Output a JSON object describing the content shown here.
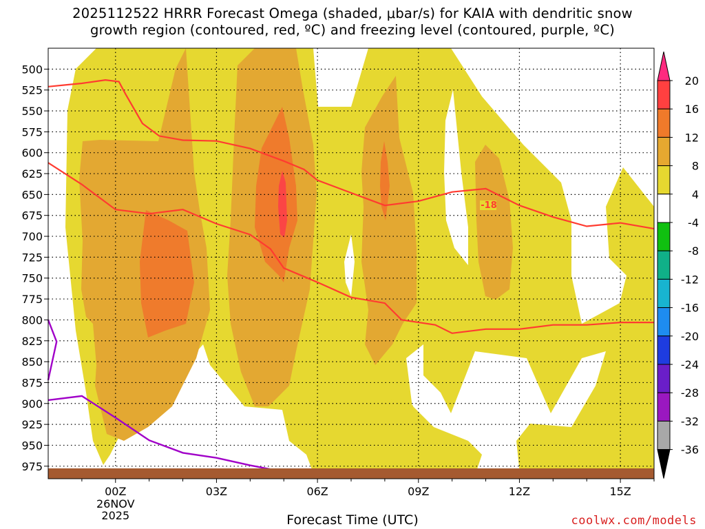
{
  "title": {
    "line1": "2025112522 HRRR Forecast Omega (shaded, μbar/s) for KAIA with dendritic snow",
    "line2": "growth region (contoured, red, ºC) and freezing level (contoured, purple, ºC)"
  },
  "chart_data": {
    "type": "heatmap",
    "xlabel": "Forecast Time (UTC)",
    "x_ticks": [
      "00Z",
      "03Z",
      "06Z",
      "09Z",
      "12Z",
      "15Z"
    ],
    "x_sub_labels": [
      "26NOV",
      "2025"
    ],
    "xlim_hours": [
      -2,
      16
    ],
    "ylabel": "",
    "y_ticks": [
      500,
      525,
      550,
      575,
      600,
      625,
      650,
      675,
      700,
      725,
      750,
      775,
      800,
      825,
      850,
      875,
      900,
      925,
      950,
      975
    ],
    "ylim_hPa": [
      990,
      475
    ],
    "grid": true,
    "colorbar": {
      "labels": [
        "20",
        "16",
        "12",
        "8",
        "4",
        "-4",
        "-8",
        "-12",
        "-16",
        "-20",
        "-24",
        "-28",
        "-32",
        "-36"
      ],
      "colors": [
        "#ff2a7f",
        "#ff4040",
        "#f07a2a",
        "#e6a830",
        "#e6d830",
        "#ffffff",
        "#10c010",
        "#10b088",
        "#18b4d0",
        "#1e8cf0",
        "#1e3ce0",
        "#6a1ec8",
        "#9a18c0",
        "#a8a8a8",
        "#000000"
      ]
    },
    "omega_levels": [
      {
        "range": "4 to 8",
        "color": "#e6d830"
      },
      {
        "range": "8 to 12",
        "color": "#e3a832"
      },
      {
        "range": "12 to 16",
        "color": "#ef7b2c"
      },
      {
        "range": "16 to 20",
        "color": "#fb4545"
      }
    ],
    "dendritic_contours": {
      "color": "#ff3b30",
      "label": "-18",
      "upper": [
        [
          -2,
          521
        ],
        [
          -1.5,
          519
        ],
        [
          -1,
          517
        ],
        [
          -0.3,
          513
        ],
        [
          0.1,
          515
        ],
        [
          0.3,
          530
        ],
        [
          0.8,
          565
        ],
        [
          1.3,
          580
        ],
        [
          2,
          585
        ],
        [
          3,
          586
        ],
        [
          4,
          595
        ],
        [
          5,
          610
        ],
        [
          5.6,
          620
        ],
        [
          6,
          633
        ],
        [
          7,
          648
        ],
        [
          8,
          663
        ],
        [
          9,
          658
        ],
        [
          10,
          647
        ],
        [
          11,
          643
        ],
        [
          12,
          663
        ],
        [
          13,
          677
        ],
        [
          14,
          688
        ],
        [
          15,
          684
        ],
        [
          16,
          691
        ]
      ],
      "lower": [
        [
          -2,
          612
        ],
        [
          -1,
          638
        ],
        [
          0,
          668
        ],
        [
          1,
          673
        ],
        [
          2,
          668
        ],
        [
          3,
          685
        ],
        [
          4,
          698
        ],
        [
          4.6,
          715
        ],
        [
          5,
          738
        ],
        [
          6,
          755
        ],
        [
          7,
          773
        ],
        [
          8,
          780
        ],
        [
          8.5,
          800
        ],
        [
          9.5,
          806
        ],
        [
          10,
          816
        ],
        [
          11,
          811
        ],
        [
          12,
          811
        ],
        [
          13,
          806
        ],
        [
          14,
          806
        ],
        [
          15,
          803
        ],
        [
          16,
          803
        ]
      ]
    },
    "freezing_level": {
      "color": "#a000c8",
      "segments": [
        [
          [
            -2,
            800
          ],
          [
            -1.75,
            826
          ],
          [
            -2,
            872
          ]
        ],
        [
          [
            -2,
            896
          ],
          [
            -1,
            891
          ],
          [
            0,
            917
          ],
          [
            1,
            944
          ],
          [
            2,
            959
          ],
          [
            3,
            965
          ],
          [
            4,
            974
          ],
          [
            5.3,
            984
          ]
        ]
      ]
    },
    "terrain": {
      "color": "#a55a30"
    }
  }
}
